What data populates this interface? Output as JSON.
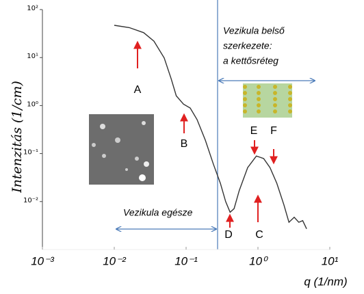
{
  "chart_data": {
    "type": "line",
    "x_label": "q (1/nm)",
    "y_label": "Intenzitás (1/cm)",
    "log_x": true,
    "log_y": true,
    "xlim": [
      0.001,
      10
    ],
    "ylim": [
      0.001,
      100
    ],
    "xticks": [
      {
        "value": 0.001,
        "label": "10⁻³"
      },
      {
        "value": 0.01,
        "label": "10⁻²"
      },
      {
        "value": 0.1,
        "label": "10⁻¹"
      },
      {
        "value": 1,
        "label": "10⁰"
      },
      {
        "value": 10,
        "label": "10¹"
      }
    ],
    "yticks": [
      {
        "value": 0.01,
        "label": "10⁻²"
      },
      {
        "value": 0.1,
        "label": "10⁻¹"
      },
      {
        "value": 1,
        "label": "10⁰"
      },
      {
        "value": 10,
        "label": "10¹"
      },
      {
        "value": 100,
        "label": "10²"
      }
    ],
    "color": "#333333",
    "x": [
      0.01,
      0.0162,
      0.0257,
      0.0357,
      0.0496,
      0.062,
      0.073,
      0.092,
      0.114,
      0.142,
      0.185,
      0.24,
      0.3,
      0.355,
      0.41,
      0.465,
      0.55,
      0.72,
      0.95,
      1.2,
      1.47,
      1.83,
      2.3,
      2.7,
      3.2,
      3.7,
      4.2,
      4.75
    ],
    "values": [
      47,
      42,
      33,
      22,
      9.8,
      3.6,
      1.6,
      1.07,
      0.89,
      0.51,
      0.19,
      0.06,
      0.024,
      0.01,
      0.006,
      0.0071,
      0.017,
      0.051,
      0.089,
      0.079,
      0.051,
      0.024,
      0.0085,
      0.0037,
      0.0047,
      0.0037,
      0.004,
      0.0027
    ],
    "annotations": [
      "A",
      "B",
      "C",
      "D",
      "E",
      "F",
      "Vezikula belső",
      "szerkezete:",
      "a kettősréteg",
      "Vezikula egésze"
    ]
  }
}
